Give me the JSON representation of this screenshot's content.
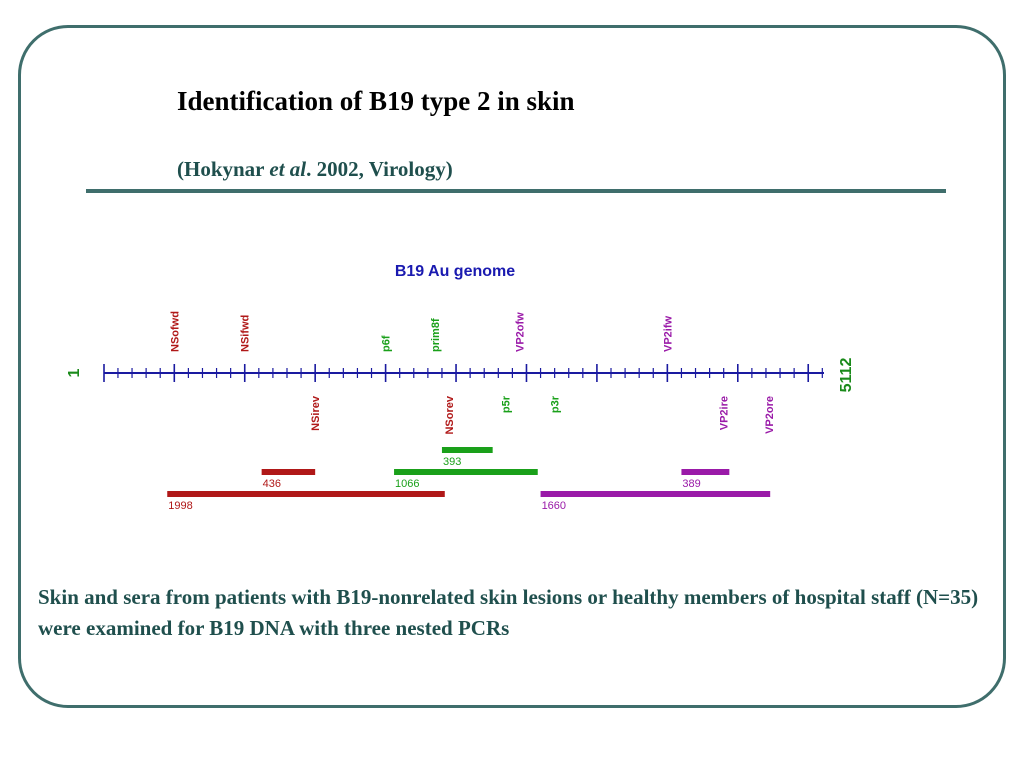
{
  "slide": {
    "title": "Identification of B19 type 2 in skin",
    "citation": {
      "prefix": "(Hokynar ",
      "italic": "et al",
      "suffix": ". 2002, Virology)"
    },
    "footer": "Skin and sera from patients with B19-nonrelated skin lesions or healthy members of hospital staff (N=35) were examined for B19 DNA with three nested PCRs"
  },
  "genome": {
    "title": "B19 Au genome",
    "start_label": "1",
    "end_label": "5112",
    "start": 1,
    "end": 5112,
    "tick_spacing": 100,
    "major_tick_every": 5,
    "colors": {
      "axis": "#1a1aa0",
      "title": "#1a1ab0",
      "end_labels": "#1a8a1a",
      "red": "#b01818",
      "green": "#1aa01a",
      "purple": "#9a1aa8"
    },
    "primers_above": [
      {
        "label": "NSofwd",
        "pos": 500,
        "color": "red"
      },
      {
        "label": "NSifwd",
        "pos": 1000,
        "color": "red"
      },
      {
        "label": "p6f",
        "pos": 2000,
        "color": "green"
      },
      {
        "label": "prim8f",
        "pos": 2350,
        "color": "green"
      },
      {
        "label": "VP2ofw",
        "pos": 2950,
        "color": "purple"
      },
      {
        "label": "VP2ifw",
        "pos": 4000,
        "color": "purple"
      }
    ],
    "primers_below": [
      {
        "label": "NSirev",
        "pos": 1500,
        "color": "red"
      },
      {
        "label": "NSorev",
        "pos": 2450,
        "color": "red"
      },
      {
        "label": "p5r",
        "pos": 2850,
        "color": "green"
      },
      {
        "label": "p3r",
        "pos": 3200,
        "color": "green"
      },
      {
        "label": "VP2ire",
        "pos": 4400,
        "color": "purple"
      },
      {
        "label": "VP2ore",
        "pos": 4720,
        "color": "purple"
      }
    ],
    "amplicons": [
      {
        "label": "393",
        "from": 2400,
        "to": 2760,
        "row": 0,
        "color": "green"
      },
      {
        "label": "436",
        "from": 1120,
        "to": 1500,
        "row": 1,
        "color": "red"
      },
      {
        "label": "1066",
        "from": 2060,
        "to": 3080,
        "row": 1,
        "color": "green"
      },
      {
        "label": "389",
        "from": 4100,
        "to": 4440,
        "row": 1,
        "color": "purple"
      },
      {
        "label": "1998",
        "from": 450,
        "to": 2420,
        "row": 2,
        "color": "red"
      },
      {
        "label": "1660",
        "from": 3100,
        "to": 4730,
        "row": 2,
        "color": "purple"
      }
    ]
  }
}
